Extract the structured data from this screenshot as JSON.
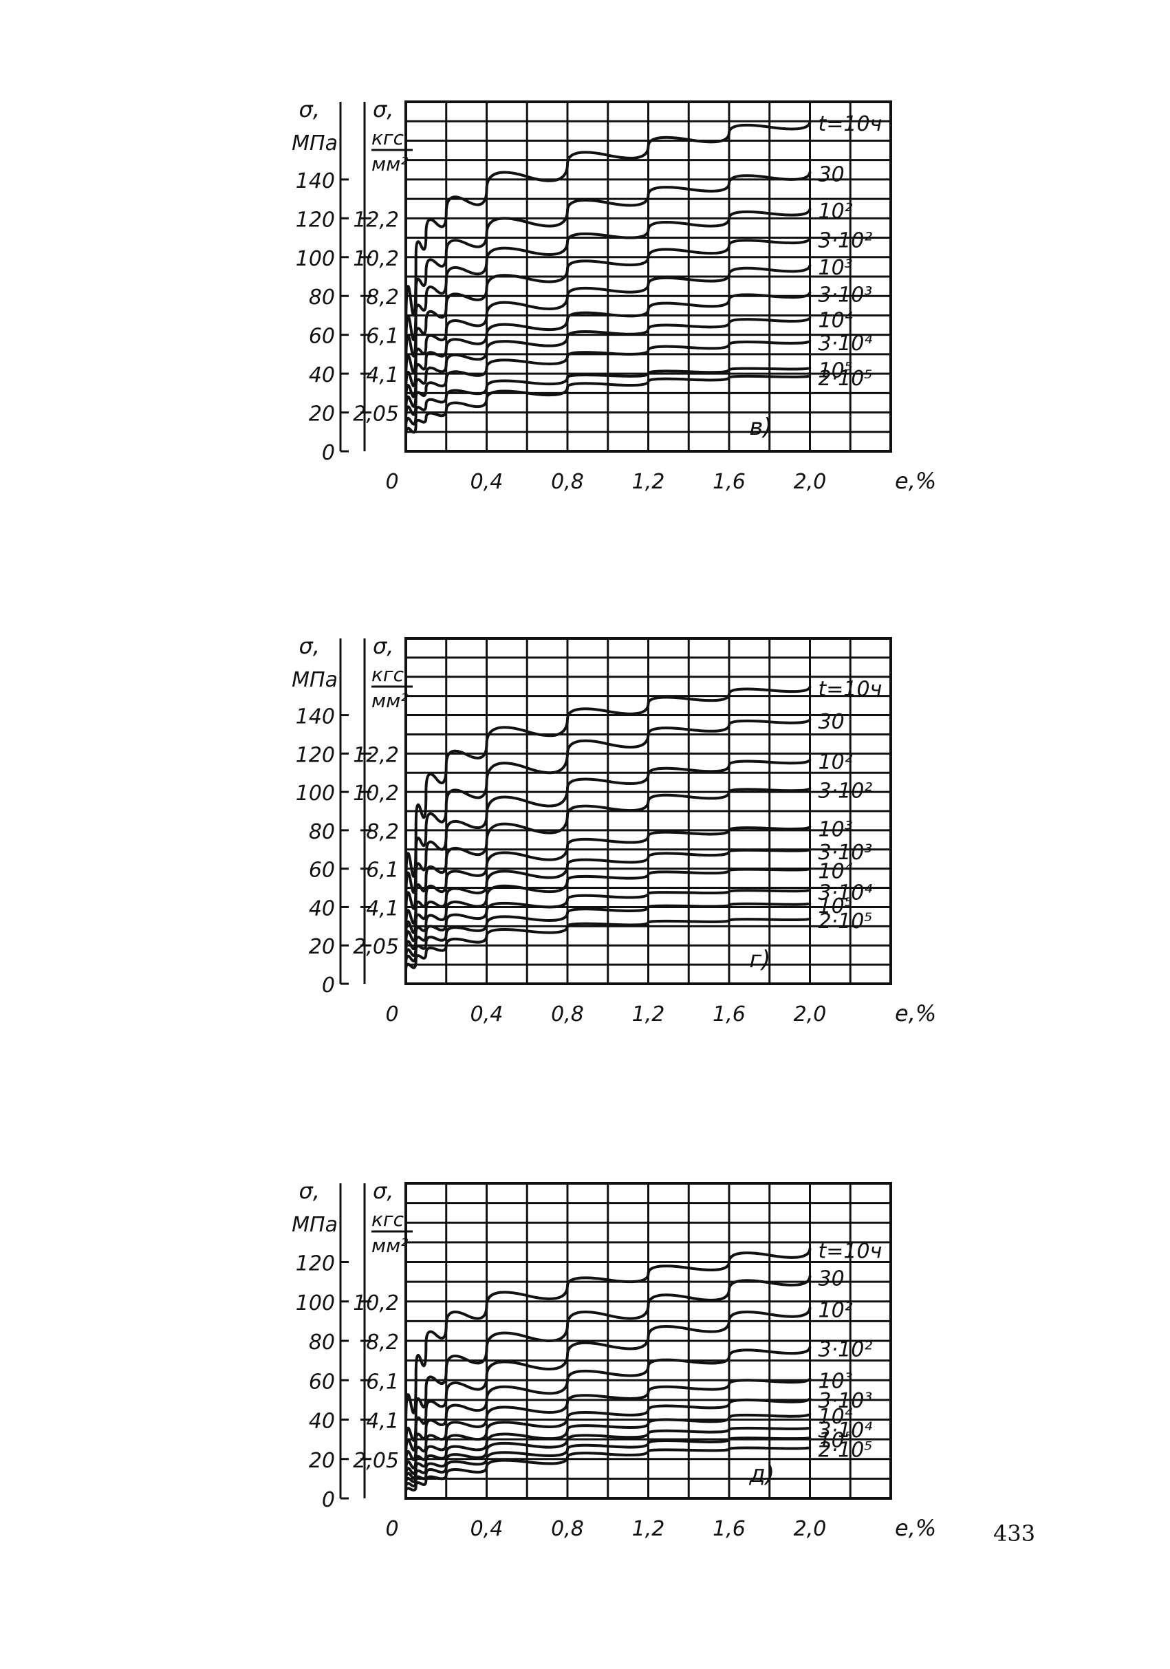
{
  "page": {
    "number": "433"
  },
  "chart_data": [
    {
      "type": "line",
      "panel_label": "в)",
      "xlabel": "e,%",
      "ylabel_left": [
        "σ,",
        "МПа"
      ],
      "ylabel_right": [
        "σ,",
        "кгс",
        "мм²"
      ],
      "x_ticks": [
        "0",
        "0,4",
        "0,8",
        "1,2",
        "1,6",
        "2,0"
      ],
      "ylim": [
        0,
        180
      ],
      "xlim": [
        0,
        2.4
      ],
      "y_ticks_left": [
        {
          "v": 0,
          "label": "0"
        },
        {
          "v": 20,
          "label": "20"
        },
        {
          "v": 40,
          "label": "40"
        },
        {
          "v": 60,
          "label": "60"
        },
        {
          "v": 80,
          "label": "80"
        },
        {
          "v": 100,
          "label": "100"
        },
        {
          "v": 120,
          "label": "120"
        },
        {
          "v": 140,
          "label": "140"
        }
      ],
      "y_ticks_right": [
        {
          "v": 20,
          "label": "2,05"
        },
        {
          "v": 40,
          "label": "4,1"
        },
        {
          "v": 60,
          "label": "6,1"
        },
        {
          "v": 80,
          "label": "8,2"
        },
        {
          "v": 100,
          "label": "10,2"
        },
        {
          "v": 120,
          "label": "12,2"
        }
      ],
      "x": [
        0.05,
        0.1,
        0.2,
        0.4,
        0.8,
        1.2,
        1.6,
        2.0
      ],
      "series": [
        {
          "name": "t=10ч",
          "label": "t=10ч",
          "values": [
            100,
            112,
            123,
            135,
            148,
            157,
            164,
            170
          ]
        },
        {
          "name": "30",
          "label": "30",
          "values": [
            82,
            92,
            102,
            112,
            124,
            132,
            138,
            144
          ]
        },
        {
          "name": "10²",
          "label": "10²",
          "values": [
            70,
            78,
            88,
            98,
            108,
            114,
            120,
            125
          ]
        },
        {
          "name": "3·10²",
          "label": "3·10²",
          "values": [
            58,
            66,
            75,
            84,
            94,
            100,
            106,
            110
          ]
        },
        {
          "name": "10³",
          "label": "10³",
          "values": [
            48,
            55,
            62,
            70,
            80,
            86,
            91,
            96
          ]
        },
        {
          "name": "3·10³",
          "label": "3·10³",
          "values": [
            40,
            47,
            53,
            60,
            68,
            73,
            78,
            82
          ]
        },
        {
          "name": "10⁴",
          "label": "10⁴",
          "values": [
            33,
            39,
            45,
            52,
            59,
            63,
            66,
            69
          ]
        },
        {
          "name": "3·10⁴",
          "label": "3·10⁴",
          "values": [
            27,
            32,
            37,
            43,
            49,
            52,
            55,
            57
          ]
        },
        {
          "name": "10⁵",
          "label": "10⁵",
          "values": [
            20,
            24,
            28,
            33,
            38,
            40,
            42,
            43
          ]
        },
        {
          "name": "2·10⁵",
          "label": "2·10⁵",
          "values": [
            14,
            17,
            21,
            27,
            33,
            36,
            38,
            39
          ]
        }
      ]
    },
    {
      "type": "line",
      "panel_label": "г)",
      "xlabel": "e,%",
      "ylabel_left": [
        "σ,",
        "МПа"
      ],
      "ylabel_right": [
        "σ,",
        "кгс",
        "мм²"
      ],
      "x_ticks": [
        "0",
        "0,4",
        "0,8",
        "1,2",
        "1,6",
        "2,0"
      ],
      "ylim": [
        0,
        180
      ],
      "xlim": [
        0,
        2.4
      ],
      "y_ticks_left": [
        {
          "v": 0,
          "label": "0"
        },
        {
          "v": 20,
          "label": "20"
        },
        {
          "v": 40,
          "label": "40"
        },
        {
          "v": 60,
          "label": "60"
        },
        {
          "v": 80,
          "label": "80"
        },
        {
          "v": 100,
          "label": "100"
        },
        {
          "v": 120,
          "label": "120"
        },
        {
          "v": 140,
          "label": "140"
        }
      ],
      "y_ticks_right": [
        {
          "v": 20,
          "label": "2,05"
        },
        {
          "v": 40,
          "label": "4,1"
        },
        {
          "v": 60,
          "label": "6,1"
        },
        {
          "v": 80,
          "label": "8,2"
        },
        {
          "v": 100,
          "label": "10,2"
        },
        {
          "v": 120,
          "label": "12,2"
        }
      ],
      "x": [
        0.05,
        0.1,
        0.2,
        0.4,
        0.8,
        1.2,
        1.6,
        2.0
      ],
      "series": [
        {
          "name": "t=10ч",
          "label": "t=10ч",
          "values": [
            80,
            100,
            114,
            125,
            138,
            146,
            151,
            155
          ]
        },
        {
          "name": "30",
          "label": "30",
          "values": [
            68,
            80,
            93,
            105,
            120,
            130,
            135,
            138
          ]
        },
        {
          "name": "10²",
          "label": "10²",
          "values": [
            56,
            66,
            78,
            88,
            102,
            109,
            114,
            117
          ]
        },
        {
          "name": "3·10²",
          "label": "3·10²",
          "values": [
            45,
            55,
            64,
            74,
            88,
            95,
            100,
            102
          ]
        },
        {
          "name": "10³",
          "label": "10³",
          "values": [
            38,
            45,
            54,
            61,
            72,
            77,
            80,
            82
          ]
        },
        {
          "name": "3·10³",
          "label": "3·10³",
          "values": [
            32,
            38,
            45,
            52,
            62,
            66,
            69,
            70
          ]
        },
        {
          "name": "10⁴",
          "label": "10⁴",
          "values": [
            26,
            31,
            38,
            45,
            54,
            57,
            59,
            60
          ]
        },
        {
          "name": "3·10⁴",
          "label": "3·10⁴",
          "values": [
            21,
            26,
            32,
            38,
            44,
            47,
            48,
            49
          ]
        },
        {
          "name": "10⁵",
          "label": "10⁵",
          "values": [
            17,
            21,
            26,
            31,
            37,
            40,
            41,
            42
          ]
        },
        {
          "name": "2·10⁵",
          "label": "2·10⁵",
          "values": [
            12,
            16,
            20,
            25,
            30,
            32,
            33,
            34
          ]
        }
      ]
    },
    {
      "type": "line",
      "panel_label": "д)",
      "xlabel": "e,%",
      "ylabel_left": [
        "σ,",
        "МПа"
      ],
      "ylabel_right": [
        "σ,",
        "кгс",
        "мм²"
      ],
      "x_ticks": [
        "0",
        "0,4",
        "0,8",
        "1,2",
        "1,6",
        "2,0"
      ],
      "ylim": [
        0,
        160
      ],
      "xlim": [
        0,
        2.4
      ],
      "y_ticks_left": [
        {
          "v": 0,
          "label": "0"
        },
        {
          "v": 20,
          "label": "20"
        },
        {
          "v": 40,
          "label": "40"
        },
        {
          "v": 60,
          "label": "60"
        },
        {
          "v": 80,
          "label": "80"
        },
        {
          "v": 100,
          "label": "100"
        },
        {
          "v": 120,
          "label": "120"
        }
      ],
      "y_ticks_right": [
        {
          "v": 20,
          "label": "2,05"
        },
        {
          "v": 40,
          "label": "4,1"
        },
        {
          "v": 60,
          "label": "6,1"
        },
        {
          "v": 80,
          "label": "8,2"
        },
        {
          "v": 100,
          "label": "10,2"
        }
      ],
      "x": [
        0.05,
        0.1,
        0.2,
        0.4,
        0.8,
        1.2,
        1.6,
        2.0
      ],
      "series": [
        {
          "name": "t=10ч",
          "label": "t=10ч",
          "values": [
            62,
            78,
            88,
            98,
            108,
            114,
            120,
            127
          ]
        },
        {
          "name": "30",
          "label": "30",
          "values": [
            42,
            55,
            65,
            76,
            88,
            98,
            106,
            113
          ]
        },
        {
          "name": "10²",
          "label": "10²",
          "values": [
            35,
            44,
            52,
            62,
            73,
            82,
            90,
            97
          ]
        },
        {
          "name": "3·10²",
          "label": "3·10²",
          "values": [
            28,
            35,
            42,
            50,
            60,
            67,
            72,
            77
          ]
        },
        {
          "name": "10³",
          "label": "10³",
          "values": [
            22,
            28,
            34,
            41,
            49,
            54,
            58,
            61
          ]
        },
        {
          "name": "3·10³",
          "label": "3·10³",
          "values": [
            18,
            23,
            28,
            34,
            41,
            45,
            48,
            51
          ]
        },
        {
          "name": "10⁴",
          "label": "10⁴",
          "values": [
            15,
            19,
            23,
            28,
            35,
            38,
            41,
            43
          ]
        },
        {
          "name": "3·10⁴",
          "label": "3·10⁴",
          "values": [
            12,
            15,
            19,
            24,
            30,
            33,
            35,
            36
          ]
        },
        {
          "name": "10⁵",
          "label": "10⁵",
          "values": [
            9,
            12,
            16,
            20,
            25,
            28,
            30,
            31
          ]
        },
        {
          "name": "2·10⁵",
          "label": "2·10⁵",
          "values": [
            6,
            9,
            12,
            16,
            21,
            24,
            25,
            26
          ]
        }
      ]
    }
  ]
}
